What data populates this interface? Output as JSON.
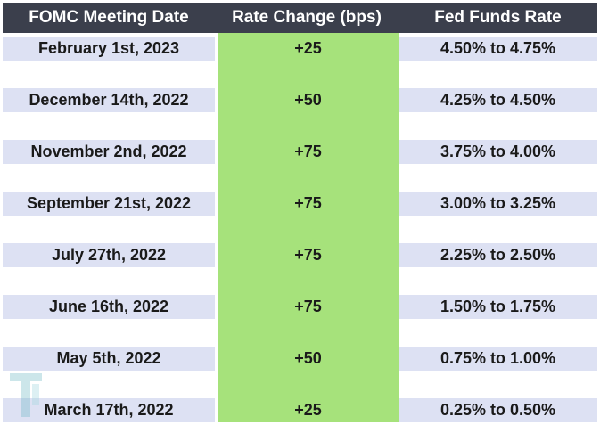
{
  "table": {
    "headers": [
      "FOMC Meeting Date",
      "Rate Change (bps)",
      "Fed Funds Rate"
    ],
    "rows": [
      {
        "date": "February 1st, 2023",
        "change": "+25",
        "rate": "4.50% to 4.75%"
      },
      {
        "date": "December 14th, 2022",
        "change": "+50",
        "rate": "4.25% to 4.50%"
      },
      {
        "date": "November 2nd, 2022",
        "change": "+75",
        "rate": "3.75% to 4.00%"
      },
      {
        "date": "September 21st, 2022",
        "change": "+75",
        "rate": "3.00% to 3.25%"
      },
      {
        "date": "July 27th, 2022",
        "change": "+75",
        "rate": "2.25% to 2.50%"
      },
      {
        "date": "June 16th, 2022",
        "change": "+75",
        "rate": "1.50% to 1.75%"
      },
      {
        "date": "May 5th, 2022",
        "change": "+50",
        "rate": "0.75% to 1.00%"
      },
      {
        "date": "March 17th, 2022",
        "change": "+25",
        "rate": "0.25% to 0.50%"
      }
    ]
  },
  "colors": {
    "header_bg": "#3b3f4c",
    "header_text": "#ffffff",
    "band_bg": "#dde1f3",
    "highlight_column": "#a6e27b"
  },
  "watermark": {
    "icon": "logo-watermark-icon"
  }
}
